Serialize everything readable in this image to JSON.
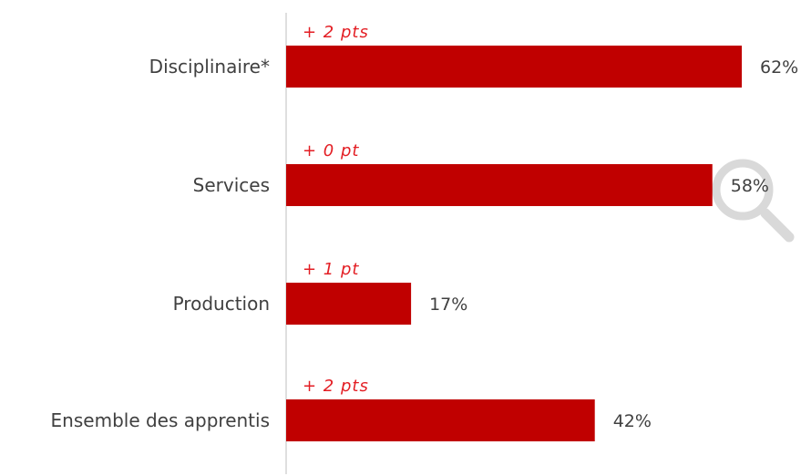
{
  "chart_data": {
    "type": "bar",
    "orientation": "horizontal",
    "categories": [
      "Disciplinaire*",
      "Services",
      "Production",
      "Ensemble des apprentis"
    ],
    "values": [
      62,
      58,
      17,
      42
    ],
    "value_labels": [
      "62%",
      "58%",
      "17%",
      "42%"
    ],
    "change_labels": [
      "+ 2 pts",
      "+ 0 pt",
      "+ 1 pt",
      "+ 2 pts"
    ],
    "title": "",
    "xlabel": "",
    "ylabel": "",
    "xlim": [
      0,
      62
    ],
    "grid": false,
    "legend": "none"
  },
  "colors": {
    "bar": "#C00000",
    "change_text": "#E31E24",
    "text": "#404040",
    "axis": "#BFBFBF",
    "magnifier": "#D9D9D9"
  },
  "icons": {
    "magnifier": "magnifier-icon"
  }
}
